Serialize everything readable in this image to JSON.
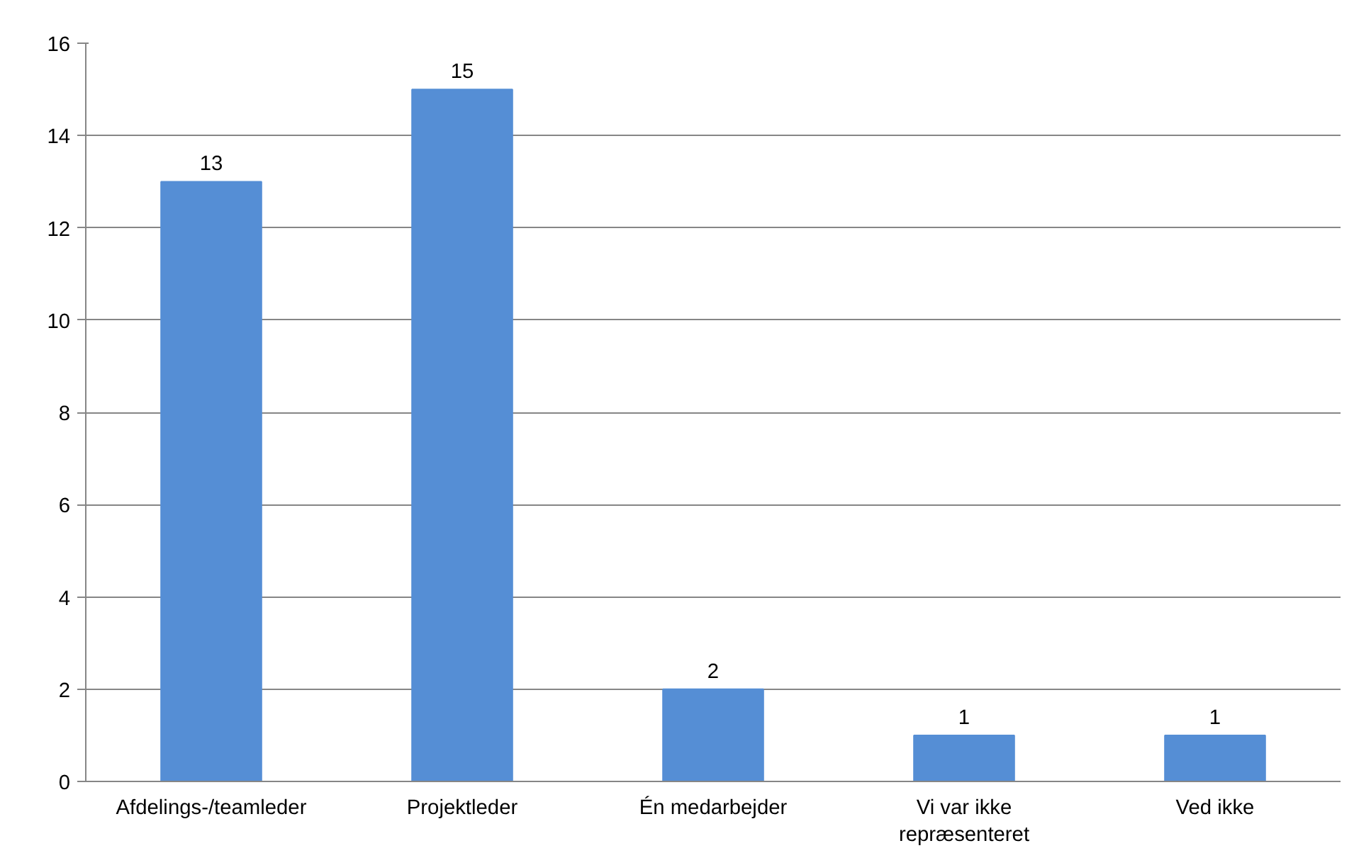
{
  "chart_data": {
    "type": "bar",
    "categories": [
      "Afdelings-/teamleder",
      "Projektleder",
      "Én medarbejder",
      "Vi var ikke repræsenteret",
      "Ved ikke"
    ],
    "values": [
      13,
      15,
      2,
      1,
      1
    ],
    "color": "#558ed5",
    "ylim": [
      0,
      16
    ],
    "yticks": [
      0,
      2,
      4,
      6,
      8,
      10,
      12,
      14,
      16
    ],
    "grid": "y",
    "data_labels": true
  }
}
